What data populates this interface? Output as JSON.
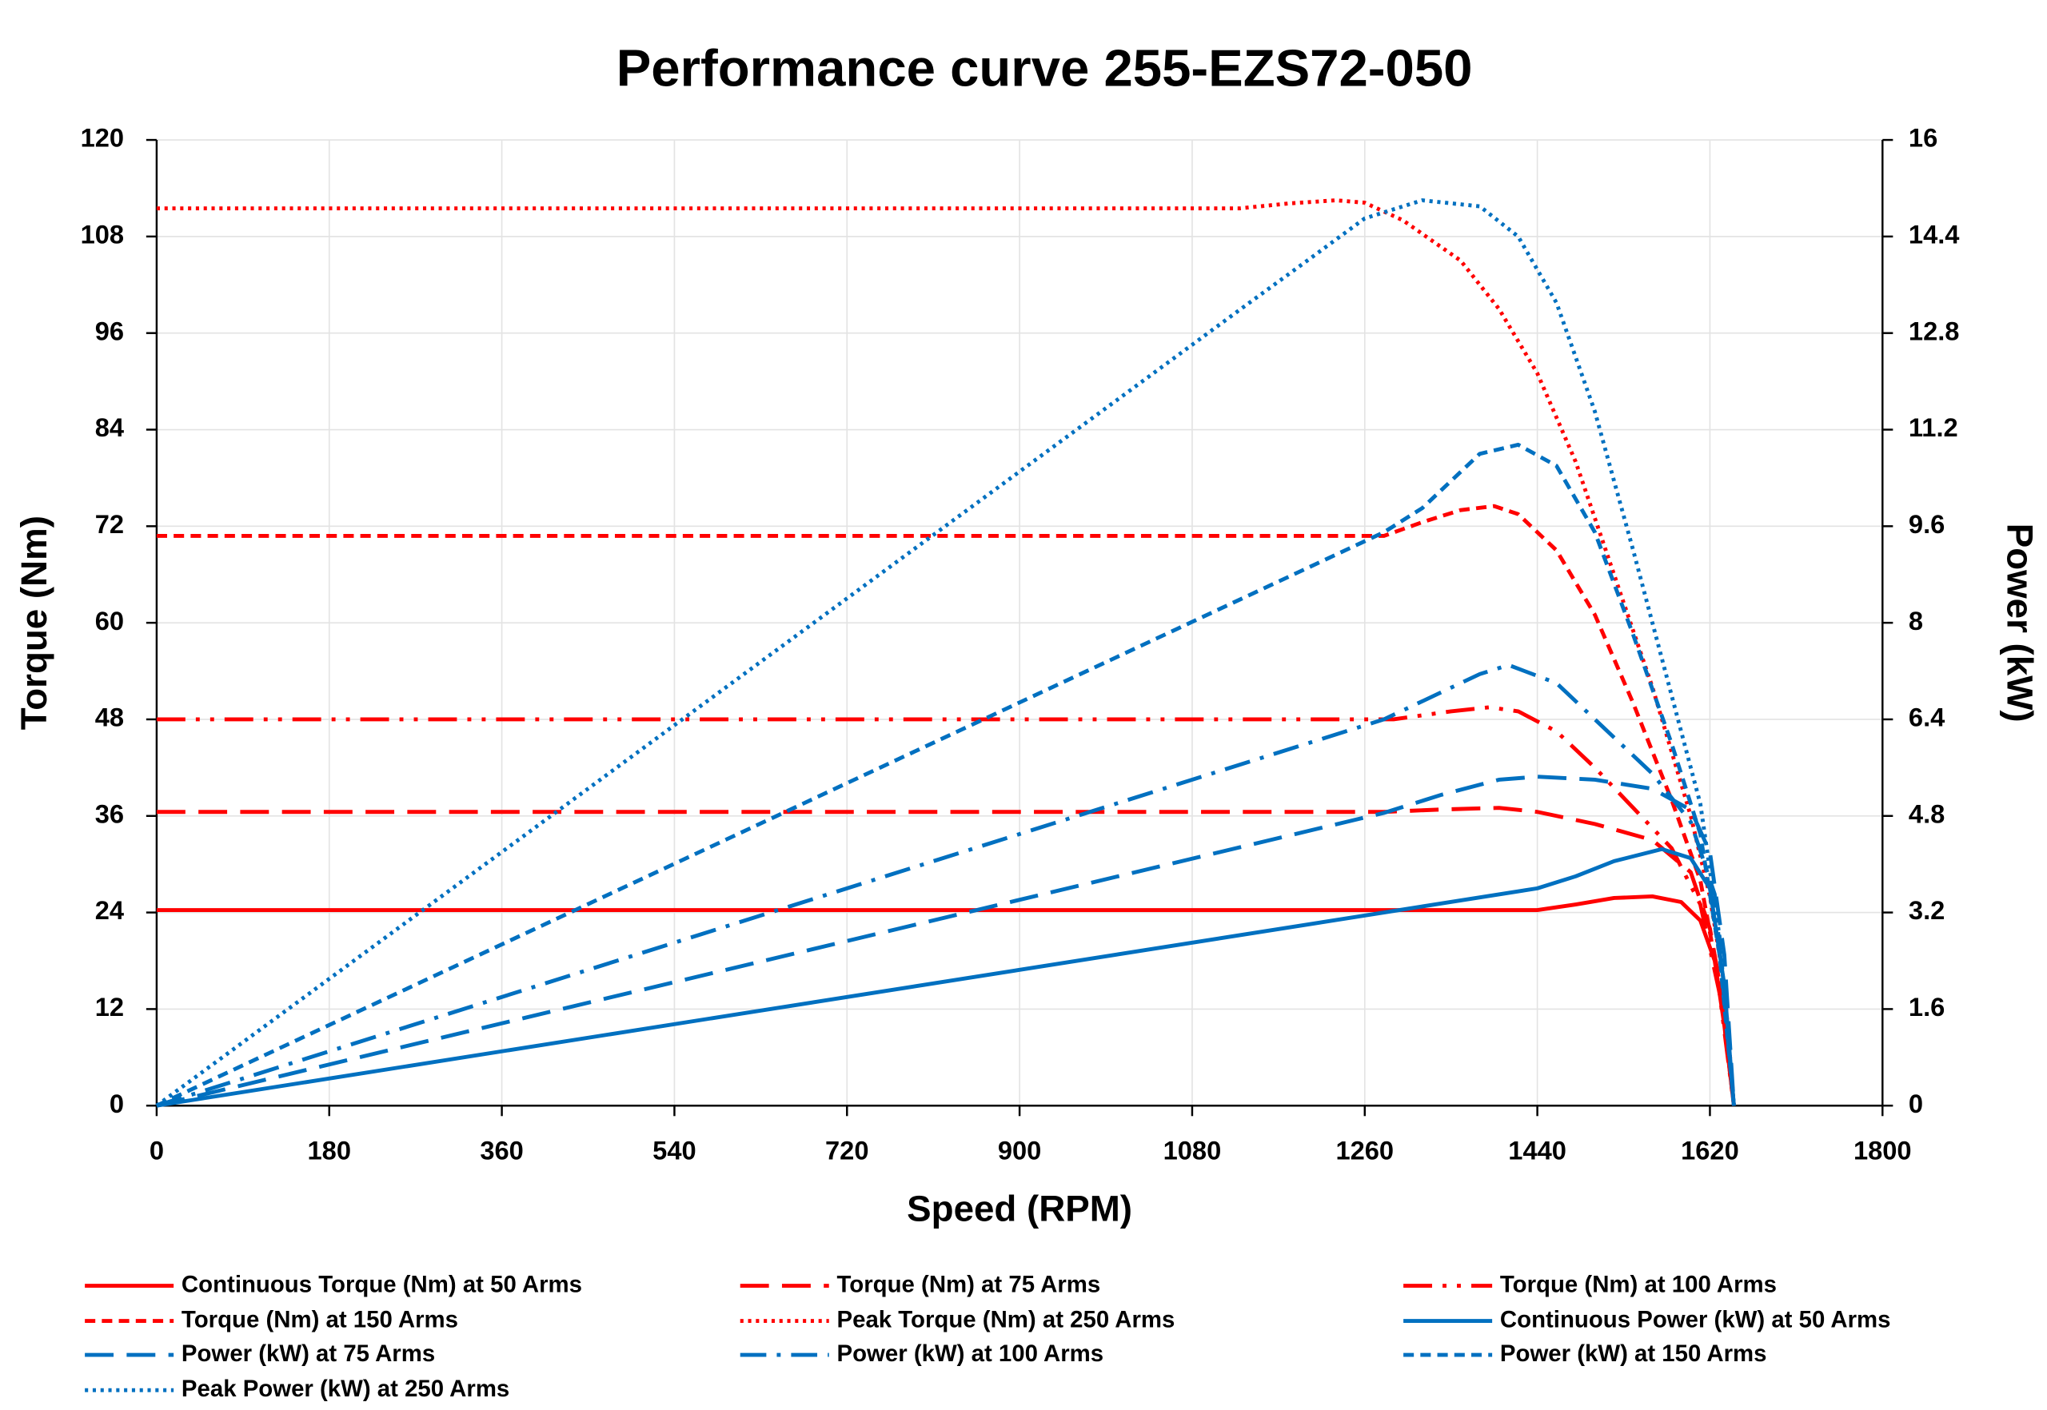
{
  "chart_data": {
    "type": "line",
    "title": "Performance curve 255-EZS72-050",
    "x_label": "Speed (RPM)",
    "y_label": "Torque (Nm)",
    "y2_label": "Power (kW)",
    "xlim": [
      0,
      1800
    ],
    "xticks": [
      0,
      180,
      360,
      540,
      720,
      900,
      1080,
      1260,
      1440,
      1620,
      1800
    ],
    "ylim": [
      0,
      120
    ],
    "yticks": [
      0,
      12,
      24,
      36,
      48,
      60,
      72,
      84,
      96,
      108,
      120
    ],
    "y2lim": [
      0,
      16
    ],
    "y2ticks": [
      0,
      1.6,
      3.2,
      4.8,
      6.4,
      8,
      9.6,
      11.2,
      12.8,
      14.4,
      16
    ],
    "grid": true,
    "legend": "bottom",
    "series": [
      {
        "name": "Continuous Torque (Nm) at 50 Arms",
        "color": "#ff0000",
        "dash": "solid",
        "x": [
          0,
          1440,
          1480,
          1520,
          1560,
          1590,
          1610,
          1625,
          1635,
          1645
        ],
        "values": [
          24.3,
          24.3,
          25,
          25.8,
          26,
          25.3,
          23,
          18,
          10,
          0
        ]
      },
      {
        "name": "Torque (Nm) at 75 Arms",
        "color": "#ff0000",
        "dash": "long-dash",
        "x": [
          0,
          1280,
          1340,
          1400,
          1440,
          1500,
          1560,
          1600,
          1620,
          1635,
          1645
        ],
        "values": [
          36.5,
          36.5,
          36.8,
          37,
          36.5,
          35,
          33,
          29,
          22,
          12,
          0
        ]
      },
      {
        "name": "Torque (Nm) at 100 Arms",
        "color": "#ff0000",
        "dash": "dash-dot-dot",
        "x": [
          0,
          1290,
          1350,
          1390,
          1420,
          1460,
          1500,
          1540,
          1580,
          1610,
          1630,
          1645
        ],
        "values": [
          48,
          48,
          49,
          49.5,
          49,
          46.5,
          42,
          37,
          32,
          25,
          14,
          0
        ]
      },
      {
        "name": "Torque (Nm) at 150 Arms",
        "color": "#ff0000",
        "dash": "dash",
        "x": [
          0,
          1280,
          1320,
          1360,
          1395,
          1420,
          1460,
          1500,
          1540,
          1580,
          1610,
          1630,
          1645
        ],
        "values": [
          70.8,
          70.8,
          72.5,
          74,
          74.5,
          73.5,
          69,
          61,
          50,
          38,
          28,
          15,
          0
        ]
      },
      {
        "name": "Peak Torque (Nm) at 250 Arms",
        "color": "#ff0000",
        "dash": "dot",
        "x": [
          0,
          1130,
          1180,
          1230,
          1260,
          1300,
          1360,
          1400,
          1440,
          1480,
          1520,
          1560,
          1600,
          1620,
          1635,
          1645
        ],
        "values": [
          111.5,
          111.5,
          112.1,
          112.5,
          112.2,
          110,
          105,
          99,
          91,
          80,
          66,
          52,
          36,
          26,
          15,
          0
        ]
      },
      {
        "name": "Continuous Power (kW) at 50 Arms",
        "color": "#0070c0",
        "dash": "solid",
        "axis": "y2",
        "x": [
          0,
          1440,
          1480,
          1520,
          1570,
          1600,
          1620,
          1635,
          1645
        ],
        "values": [
          0,
          3.6,
          3.8,
          4.05,
          4.25,
          4.1,
          3.6,
          2,
          0
        ]
      },
      {
        "name": "Power (kW) at 75 Arms",
        "color": "#0070c0",
        "dash": "long-dash",
        "axis": "y2",
        "x": [
          0,
          1280,
          1340,
          1400,
          1440,
          1500,
          1560,
          1600,
          1620,
          1635,
          1645
        ],
        "values": [
          0,
          4.85,
          5.15,
          5.4,
          5.45,
          5.4,
          5.25,
          4.9,
          4.2,
          2.5,
          0
        ]
      },
      {
        "name": "Power (kW) at 100 Arms",
        "color": "#0070c0",
        "dash": "dash-dot",
        "axis": "y2",
        "x": [
          0,
          1280,
          1340,
          1380,
          1410,
          1460,
          1500,
          1560,
          1600,
          1625,
          1645
        ],
        "values": [
          0,
          6.4,
          6.85,
          7.15,
          7.3,
          7.0,
          6.4,
          5.5,
          4.7,
          3.5,
          0
        ]
      },
      {
        "name": "Power (kW) at 150 Arms",
        "color": "#0070c0",
        "dash": "dash",
        "axis": "y2",
        "x": [
          0,
          1280,
          1320,
          1380,
          1420,
          1460,
          1500,
          1540,
          1580,
          1610,
          1630,
          1645
        ],
        "values": [
          0,
          9.5,
          9.9,
          10.8,
          10.95,
          10.6,
          9.5,
          7.8,
          6,
          4.5,
          2.5,
          0
        ]
      },
      {
        "name": "Peak Power (kW) at 250 Arms",
        "color": "#0070c0",
        "dash": "dot",
        "axis": "y2",
        "x": [
          0,
          1130,
          1200,
          1260,
          1320,
          1380,
          1420,
          1460,
          1500,
          1540,
          1580,
          1610,
          1630,
          1645
        ],
        "values": [
          0,
          13.19,
          14.0,
          14.7,
          15.0,
          14.9,
          14.4,
          13.3,
          11.5,
          9.2,
          6.8,
          5,
          2.8,
          0
        ]
      }
    ]
  }
}
